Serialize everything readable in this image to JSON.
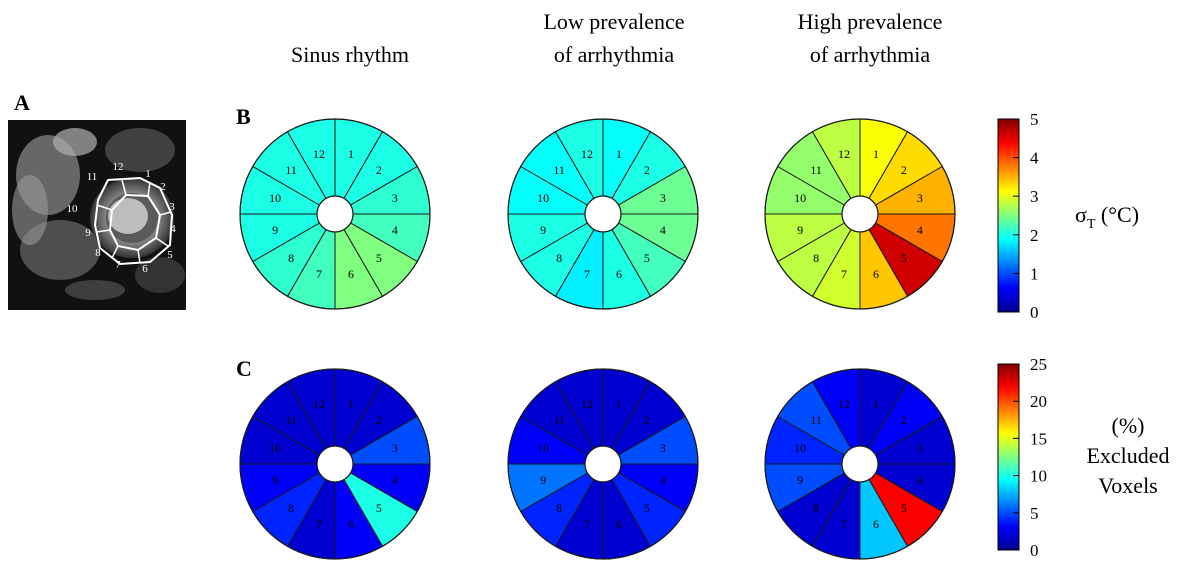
{
  "columns": [
    {
      "line1": "Sinus rhythm",
      "line2": ""
    },
    {
      "line1": "Low prevalence",
      "line2": "of arrhythmia"
    },
    {
      "line1": "High prevalence",
      "line2": "of arrhythmia"
    }
  ],
  "panels": {
    "a": "A",
    "b": "B",
    "c": "C"
  },
  "segment_labels": [
    "1",
    "2",
    "3",
    "4",
    "5",
    "6",
    "7",
    "8",
    "9",
    "10",
    "11",
    "12"
  ],
  "mri_labels": [
    "1",
    "2",
    "3",
    "4",
    "5",
    "6",
    "7",
    "8",
    "9",
    "10",
    "11",
    "12"
  ],
  "colorbars": [
    {
      "ticks": [
        "0",
        "1",
        "2",
        "3",
        "4",
        "5"
      ],
      "min": 0,
      "max": 5,
      "label_sym": "σ",
      "label_sub": "T",
      "label_rest": " (°C)"
    },
    {
      "ticks": [
        "0",
        "5",
        "10",
        "15",
        "20",
        "25"
      ],
      "min": 0,
      "max": 25,
      "label_lines": [
        "(%)",
        "Excluded",
        "Voxels"
      ]
    }
  ],
  "chart_data": [
    {
      "type": "heatmap",
      "name_id": "B",
      "metric": "σT (°C)",
      "range": [
        0,
        5
      ],
      "segments": [
        "1",
        "2",
        "3",
        "4",
        "5",
        "6",
        "7",
        "8",
        "9",
        "10",
        "11",
        "12"
      ],
      "series": [
        {
          "condition": "Sinus rhythm",
          "values": [
            2.0,
            2.0,
            2.1,
            2.2,
            2.5,
            2.5,
            2.2,
            2.1,
            2.0,
            2.0,
            2.0,
            2.0
          ]
        },
        {
          "condition": "Low prevalence of arrhythmia",
          "values": [
            1.9,
            2.0,
            2.4,
            2.4,
            2.2,
            2.0,
            1.8,
            2.0,
            2.0,
            1.9,
            1.9,
            2.0
          ]
        },
        {
          "condition": "High prevalence of arrhythmia",
          "values": [
            3.1,
            3.3,
            3.5,
            3.8,
            4.6,
            3.4,
            2.9,
            2.8,
            2.8,
            2.6,
            2.6,
            2.8
          ]
        }
      ]
    },
    {
      "type": "heatmap",
      "name_id": "C",
      "metric": "Excluded Voxels (%)",
      "range": [
        0,
        25
      ],
      "segments": [
        "1",
        "2",
        "3",
        "4",
        "5",
        "6",
        "7",
        "8",
        "9",
        "10",
        "11",
        "12"
      ],
      "series": [
        {
          "condition": "Sinus rhythm",
          "values": [
            2.0,
            2.0,
            5.0,
            3.0,
            10.0,
            3.0,
            2.0,
            4.0,
            3.0,
            2.0,
            2.0,
            2.0
          ]
        },
        {
          "condition": "Low prevalence of arrhythmia",
          "values": [
            2.0,
            2.0,
            5.0,
            3.0,
            4.0,
            2.0,
            2.0,
            4.0,
            6.0,
            3.0,
            2.0,
            2.0
          ]
        },
        {
          "condition": "High prevalence of arrhythmia",
          "values": [
            2.0,
            3.0,
            2.0,
            2.0,
            22.0,
            8.0,
            2.0,
            2.0,
            5.0,
            4.0,
            5.0,
            3.0
          ]
        }
      ]
    }
  ]
}
